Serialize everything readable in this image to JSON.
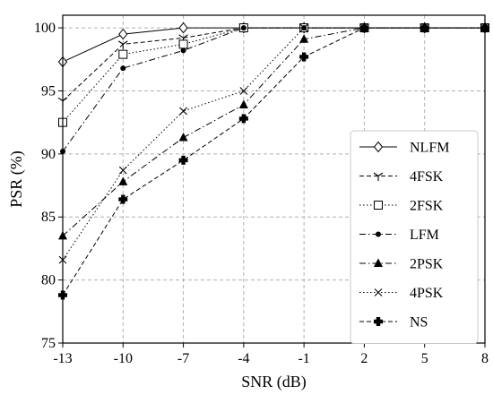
{
  "chart_data": {
    "type": "line",
    "x": [
      -13,
      -10,
      -7,
      -4,
      -1,
      2,
      5,
      8
    ],
    "xticks": [
      "-13",
      "-10",
      "-7",
      "-4",
      "-1",
      "2",
      "5",
      "8"
    ],
    "yticks": [
      "75",
      "80",
      "85",
      "90",
      "95",
      "100"
    ],
    "xlabel": "SNR (dB)",
    "ylabel": "PSR (%)",
    "ylim": [
      75,
      101
    ],
    "grid": true,
    "legend_position": "lower-right",
    "series": [
      {
        "name": "NLFM",
        "marker": "diamond-open",
        "dash": "solid",
        "values": [
          97.3,
          99.5,
          100,
          100,
          100,
          100,
          100,
          100
        ]
      },
      {
        "name": "4FSK",
        "marker": "tri-down",
        "dash": "dashed",
        "values": [
          94.2,
          98.7,
          99.2,
          100,
          100,
          100,
          100,
          100
        ]
      },
      {
        "name": "2FSK",
        "marker": "square-open",
        "dash": "dotted",
        "values": [
          92.5,
          97.9,
          98.7,
          100,
          100,
          100,
          100,
          100
        ]
      },
      {
        "name": "LFM",
        "marker": "circle-filled",
        "dash": "dashdot",
        "values": [
          90.2,
          96.8,
          98.2,
          100,
          100,
          100,
          100,
          100
        ]
      },
      {
        "name": "2PSK",
        "marker": "triangle-filled",
        "dash": "dashdot",
        "values": [
          83.5,
          87.8,
          91.3,
          93.9,
          99.1,
          100,
          100,
          100
        ]
      },
      {
        "name": "4PSK",
        "marker": "x",
        "dash": "dotted",
        "values": [
          81.6,
          88.7,
          93.4,
          95.0,
          100,
          100,
          100,
          100
        ]
      },
      {
        "name": "NS",
        "marker": "plus-filled",
        "dash": "dashed",
        "values": [
          78.8,
          86.4,
          89.5,
          92.8,
          97.7,
          100,
          100,
          100
        ]
      }
    ]
  }
}
